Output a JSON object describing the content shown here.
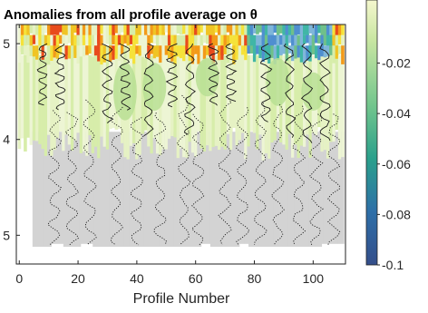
{
  "chart_data": {
    "type": "heatmap",
    "title": "Anomalies from all profile average on θ",
    "xlabel": "Profile Number",
    "ylabel": "",
    "x_ticks": [
      0,
      20,
      40,
      60,
      80,
      100
    ],
    "x_range": [
      -1,
      111
    ],
    "y_ticks": [
      {
        "value": 1,
        "label": "5"
      },
      {
        "value": 2,
        "label": "4"
      },
      {
        "value": 3,
        "label": "5"
      }
    ],
    "y_range": [
      0.8,
      3.3
    ],
    "colorbar": {
      "ticks": [
        {
          "value": -0.02,
          "label": "-0.02"
        },
        {
          "value": -0.04,
          "label": "-0.04"
        },
        {
          "value": -0.06,
          "label": "-0.06"
        },
        {
          "value": -0.08,
          "label": "-0.08"
        },
        {
          "value": -0.1,
          "label": "-0.1"
        }
      ],
      "range": [
        -0.1,
        0.005
      ],
      "colors_top_to_bottom": [
        "#f5f7ce",
        "#c9e6a2",
        "#72c58d",
        "#2aa08c",
        "#2e6fa8",
        "#344e8a"
      ]
    },
    "surface_colors": {
      "warm": [
        "#f39a19",
        "#f0c424",
        "#e84b1c",
        "#f5e23a"
      ],
      "cool": [
        "#6fc08a",
        "#40b6a6",
        "#7fb6d9",
        "#4f8fd0"
      ],
      "light": [
        "#e6f2c4",
        "#d7edaa",
        "#edf5d4"
      ],
      "gray": "#d3d3d3"
    },
    "gray_fill_start_x": 5,
    "gray_fill_depth_top": 1.92,
    "gray_fill_depth_bottom": 3.12,
    "grid": false,
    "legend": "none"
  }
}
